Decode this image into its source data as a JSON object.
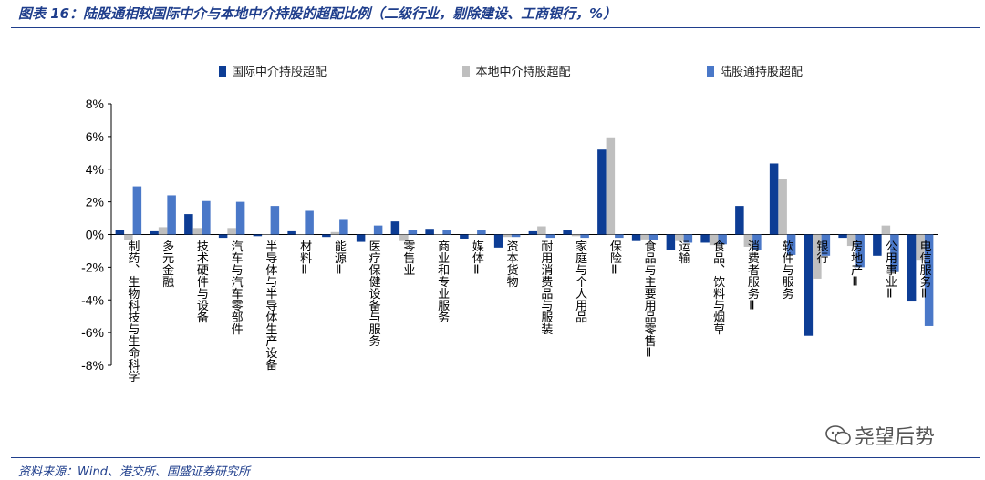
{
  "title": "图表 16：陆股通相较国际中介与本地中介持股的超配比例（二级行业，剔除建设、工商银行，%）",
  "source": "资料来源：Wind、港交所、国盛证券研究所",
  "watermark": "尧望后势",
  "colors": {
    "international": "#0d3d95",
    "local": "#bfbfbf",
    "connect": "#4a78c8",
    "title": "#1f3e8c"
  },
  "chart_data": {
    "type": "bar",
    "title": "",
    "xlabel": "",
    "ylabel": "",
    "ylim": [
      -0.08,
      0.08
    ],
    "y_ticks": [
      0.08,
      0.06,
      0.04,
      0.02,
      0,
      -0.02,
      -0.04,
      -0.06,
      -0.08
    ],
    "y_tick_labels": [
      "8%",
      "6%",
      "4%",
      "2%",
      "0%",
      "-2%",
      "-4%",
      "-6%",
      "-8%"
    ],
    "legend_position": "top",
    "grid": false,
    "categories": [
      "制药、生物科技与生命科学",
      "多元金融",
      "技术硬件与设备",
      "汽车与汽车零部件",
      "半导体与半导体生产设备",
      "材料Ⅱ",
      "能源Ⅱ",
      "医疗保健设备与服务",
      "零售业",
      "商业和专业服务",
      "媒体Ⅱ",
      "资本货物",
      "耐用消费品与服装",
      "家庭与个人用品",
      "保险Ⅱ",
      "食品与主要用品零售Ⅱ",
      "运输",
      "食品、饮料与烟草",
      "消费者服务Ⅱ",
      "软件与服务",
      "银行",
      "房地产Ⅱ",
      "公用事业Ⅱ",
      "电信服务Ⅱ"
    ],
    "series": [
      {
        "name": "国际中介持股超配",
        "values": [
          0.003,
          0.002,
          0.0125,
          -0.002,
          -0.001,
          0.002,
          -0.0015,
          -0.0045,
          0.008,
          0.0035,
          -0.0025,
          -0.008,
          0.002,
          0.0025,
          0.052,
          -0.004,
          -0.0095,
          -0.005,
          0.0175,
          0.0435,
          -0.062,
          -0.002,
          -0.013,
          -0.041
        ]
      },
      {
        "name": "本地中介持股超配",
        "values": [
          -0.0035,
          0.0045,
          0.004,
          0.004,
          0,
          0,
          0.0015,
          0,
          -0.004,
          0,
          0,
          -0.0015,
          0.005,
          -0.001,
          0.0595,
          -0.003,
          -0.004,
          -0.0065,
          -0.0075,
          0.034,
          -0.027,
          -0.007,
          0.0055,
          -0.016
        ]
      },
      {
        "name": "陆股通持股超配",
        "values": [
          0.0295,
          0.024,
          0.0205,
          0.02,
          0.0175,
          0.0145,
          0.0095,
          0.0055,
          0.003,
          0.0025,
          0.0025,
          -0.0015,
          -0.002,
          -0.002,
          -0.002,
          -0.0035,
          -0.005,
          -0.006,
          -0.0095,
          -0.0125,
          -0.013,
          -0.02,
          -0.023,
          -0.056
        ]
      }
    ]
  }
}
